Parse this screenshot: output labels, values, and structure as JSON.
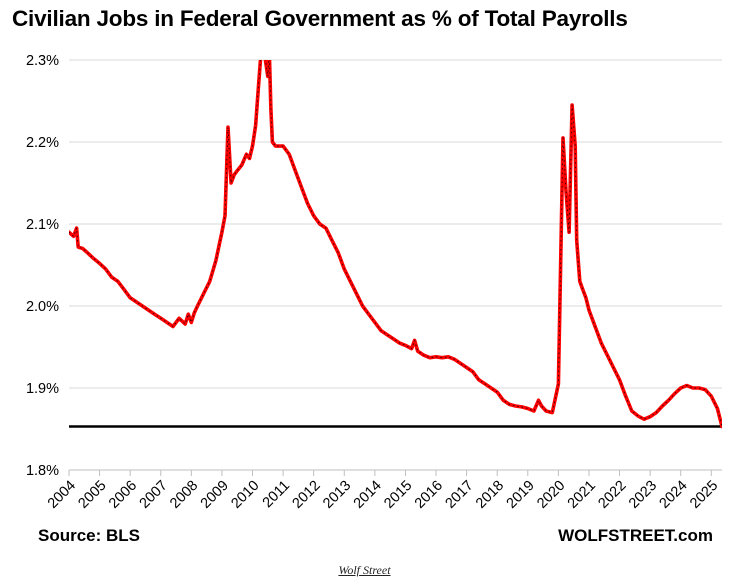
{
  "chart_data": {
    "type": "line",
    "title": "Civilian Jobs in Federal Government as % of Total Payrolls",
    "xlabel": "",
    "ylabel": "",
    "ylim": [
      1.8,
      2.3
    ],
    "y_ticks": [
      "1.8%",
      "1.9%",
      "2.0%",
      "2.1%",
      "2.2%",
      "2.3%"
    ],
    "x_ticks": [
      "2004",
      "2005",
      "2006",
      "2007",
      "2008",
      "2009",
      "2010",
      "2011",
      "2012",
      "2013",
      "2014",
      "2015",
      "2016",
      "2017",
      "2018",
      "2019",
      "2020",
      "2021",
      "2022",
      "2023",
      "2024",
      "2025"
    ],
    "grid": true,
    "reference_line": 1.853,
    "line_color": "#ff0000",
    "reference_color": "#000000",
    "series": [
      {
        "x": [
          2004.0,
          2004.15,
          2004.25,
          2004.3,
          2004.45,
          2004.6,
          2004.8,
          2005.0,
          2005.2,
          2005.4,
          2005.6,
          2005.8,
          2006.0,
          2006.2,
          2006.4,
          2006.6,
          2006.8,
          2007.0,
          2007.2,
          2007.4,
          2007.6,
          2007.8,
          2007.9,
          2008.0,
          2008.1,
          2008.2,
          2008.4,
          2008.6,
          2008.8,
          2009.0,
          2009.1,
          2009.2,
          2009.3,
          2009.4,
          2009.5,
          2009.65,
          2009.8,
          2009.9,
          2010.0,
          2010.1,
          2010.2,
          2010.3,
          2010.35,
          2010.42,
          2010.5,
          2010.55,
          2010.6,
          2010.65,
          2010.75,
          2010.9,
          2011.0,
          2011.2,
          2011.4,
          2011.6,
          2011.8,
          2012.0,
          2012.2,
          2012.4,
          2012.6,
          2012.8,
          2013.0,
          2013.2,
          2013.4,
          2013.6,
          2013.8,
          2014.0,
          2014.2,
          2014.4,
          2014.6,
          2014.8,
          2015.0,
          2015.2,
          2015.3,
          2015.4,
          2015.6,
          2015.8,
          2016.0,
          2016.2,
          2016.4,
          2016.6,
          2016.8,
          2017.0,
          2017.2,
          2017.4,
          2017.6,
          2017.8,
          2018.0,
          2018.2,
          2018.4,
          2018.6,
          2018.8,
          2019.0,
          2019.2,
          2019.35,
          2019.45,
          2019.6,
          2019.8,
          2020.0,
          2020.15,
          2020.25,
          2020.35,
          2020.45,
          2020.55,
          2020.6,
          2020.7,
          2020.8,
          2020.9,
          2021.0,
          2021.2,
          2021.4,
          2021.6,
          2021.8,
          2022.0,
          2022.2,
          2022.4,
          2022.6,
          2022.8,
          2023.0,
          2023.2,
          2023.4,
          2023.6,
          2023.8,
          2024.0,
          2024.2,
          2024.4,
          2024.6,
          2024.8,
          2025.0,
          2025.2,
          2025.35
        ],
        "values": [
          2.09,
          2.085,
          2.095,
          2.072,
          2.07,
          2.065,
          2.058,
          2.052,
          2.045,
          2.035,
          2.03,
          2.02,
          2.01,
          2.005,
          2.0,
          1.995,
          1.99,
          1.985,
          1.98,
          1.975,
          1.985,
          1.978,
          1.99,
          1.98,
          1.992,
          2.0,
          2.015,
          2.03,
          2.055,
          2.09,
          2.11,
          2.218,
          2.15,
          2.16,
          2.165,
          2.172,
          2.185,
          2.18,
          2.195,
          2.22,
          2.27,
          2.32,
          2.33,
          2.3,
          2.28,
          2.31,
          2.24,
          2.2,
          2.195,
          2.195,
          2.195,
          2.185,
          2.165,
          2.145,
          2.125,
          2.11,
          2.1,
          2.095,
          2.08,
          2.065,
          2.045,
          2.03,
          2.015,
          2.0,
          1.99,
          1.98,
          1.97,
          1.965,
          1.96,
          1.955,
          1.952,
          1.948,
          1.958,
          1.945,
          1.94,
          1.937,
          1.938,
          1.937,
          1.938,
          1.935,
          1.93,
          1.925,
          1.92,
          1.91,
          1.905,
          1.9,
          1.895,
          1.885,
          1.88,
          1.878,
          1.877,
          1.875,
          1.872,
          1.885,
          1.878,
          1.872,
          1.87,
          1.905,
          2.205,
          2.14,
          2.09,
          2.245,
          2.195,
          2.08,
          2.03,
          2.02,
          2.01,
          1.995,
          1.975,
          1.955,
          1.94,
          1.925,
          1.91,
          1.89,
          1.872,
          1.866,
          1.862,
          1.865,
          1.87,
          1.878,
          1.885,
          1.893,
          1.9,
          1.903,
          1.9,
          1.9,
          1.898,
          1.89,
          1.875,
          1.853
        ]
      }
    ]
  },
  "labels": {
    "title": "Civilian Jobs in Federal Government as % of Total Payrolls",
    "source": "Source: BLS",
    "site": "WOLFSTREET.com",
    "credit": "Wolf Street"
  }
}
